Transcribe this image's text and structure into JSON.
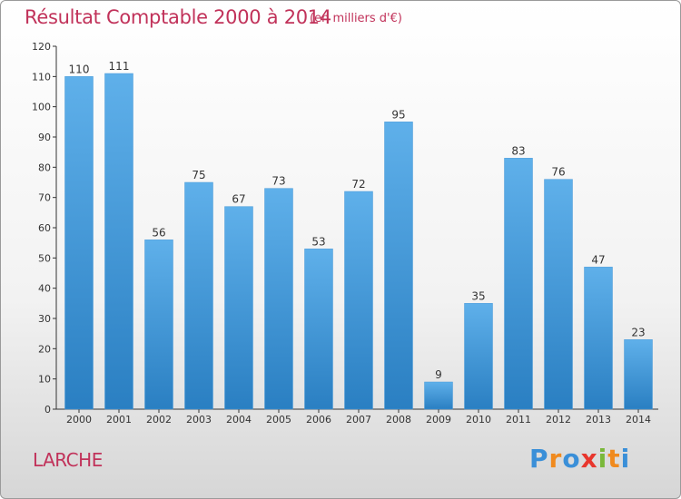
{
  "title": "Résultat Comptable 2000 à 2014",
  "subtitle": "(en milliers d'€)",
  "commune": "LARCHE",
  "logo": {
    "text": "Proxiti",
    "letters": [
      "P",
      "r",
      "o",
      "x",
      "i",
      "t",
      "i"
    ],
    "letter_colors": [
      "#3a8fd8",
      "#f08a1e",
      "#3a8fd8",
      "#e8362d",
      "#7ab83a",
      "#f08a1e",
      "#3a8fd8"
    ]
  },
  "colors": {
    "title": "#c1325a",
    "bar_top": "#5fb0ea",
    "bar_bottom": "#2a7fc2",
    "axis": "#333333",
    "label": "#333333"
  },
  "chart_data": {
    "type": "bar",
    "title": "Résultat Comptable 2000 à 2014",
    "subtitle": "(en milliers d'€)",
    "categories": [
      "2000",
      "2001",
      "2002",
      "2003",
      "2004",
      "2005",
      "2006",
      "2007",
      "2008",
      "2009",
      "2010",
      "2011",
      "2012",
      "2013",
      "2014"
    ],
    "values": [
      110,
      111,
      56,
      75,
      67,
      73,
      53,
      72,
      95,
      9,
      35,
      83,
      76,
      47,
      23
    ],
    "ylim": [
      0,
      120
    ],
    "yticks": [
      0,
      10,
      20,
      30,
      40,
      50,
      60,
      70,
      80,
      90,
      100,
      110,
      120
    ],
    "xlabel": "",
    "ylabel": "",
    "grid": false
  }
}
